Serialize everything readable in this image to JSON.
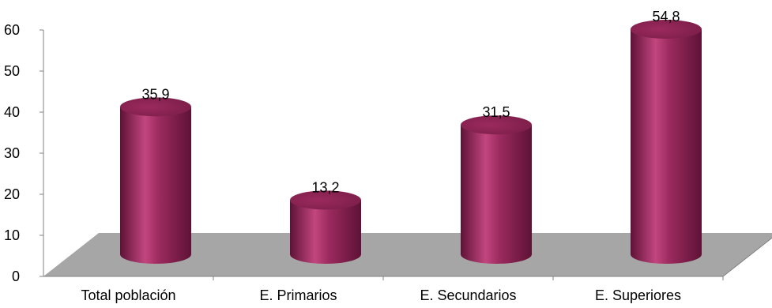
{
  "chart_data": {
    "type": "bar",
    "style": "3d-cylinder",
    "categories": [
      "Total población",
      "E. Primarios",
      "E. Secundarios",
      "E. Superiores"
    ],
    "values": [
      35.9,
      13.2,
      31.5,
      54.8
    ],
    "data_labels": [
      "35,9",
      "13,2",
      "31,5",
      "54,8"
    ],
    "yticks": [
      "0",
      "10",
      "20",
      "30",
      "40",
      "50",
      "60"
    ],
    "ylim": [
      0,
      60
    ],
    "title": "",
    "xlabel": "",
    "ylabel": "",
    "grid": false,
    "legend": "none",
    "colors": {
      "bar": "#9b2a5e",
      "bar_dark": "#5e1236",
      "bar_light": "#c2467f",
      "bar_top": "#7a1d48",
      "floor": "#a6a6a6",
      "axis": "#808080"
    }
  }
}
